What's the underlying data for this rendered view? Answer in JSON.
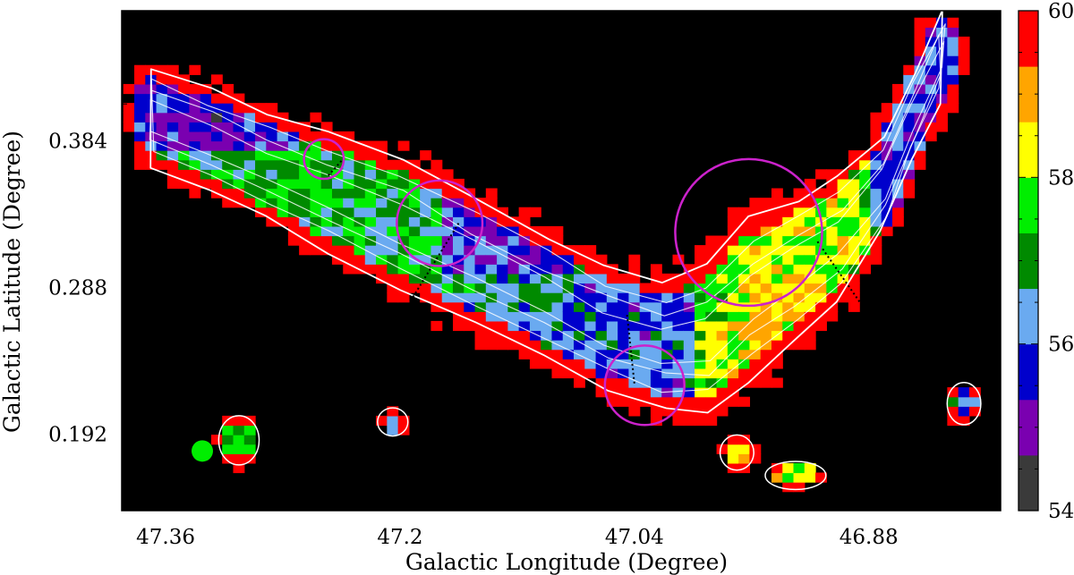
{
  "chart_data": {
    "type": "heatmap",
    "title": "",
    "xlabel": "Galactic Longitude (Degree)",
    "ylabel": "Galactic Latitude (Degree)",
    "x_reversed": true,
    "xlim": [
      47.39,
      46.79
    ],
    "ylim": [
      0.142,
      0.469
    ],
    "x_tick_labels": [
      "47.36",
      "47.2",
      "47.04",
      "46.88"
    ],
    "x_ticks": [
      47.36,
      47.2,
      47.04,
      46.88
    ],
    "y_tick_labels": [
      "0.384",
      "0.288",
      "0.192"
    ],
    "y_ticks": [
      0.384,
      0.288,
      0.192
    ],
    "colorbar": {
      "label": "",
      "min": 54,
      "max": 60,
      "tick_labels": [
        "60",
        "58",
        "56",
        "54"
      ],
      "ticks": [
        60,
        58,
        56,
        54
      ],
      "colors": [
        "#3a3a3a",
        "#7a00b0",
        "#0000cc",
        "#6aaaf0",
        "#008a00",
        "#00ee00",
        "#ffff00",
        "#ffa500",
        "#ff0000"
      ]
    },
    "background_color": "#000000",
    "contour_color": "#ffffff",
    "region_color": "#cc22cc",
    "cuts_style": "dotted black",
    "circles": [
      {
        "l": 47.252,
        "b": 0.372,
        "r": 0.013
      },
      {
        "l": 47.173,
        "b": 0.33,
        "r": 0.028
      },
      {
        "l": 47.033,
        "b": 0.224,
        "r": 0.026
      },
      {
        "l": 46.962,
        "b": 0.324,
        "r": 0.048
      }
    ],
    "beam": {
      "l": 47.335,
      "b": 0.181,
      "color": "#00ee00"
    }
  }
}
